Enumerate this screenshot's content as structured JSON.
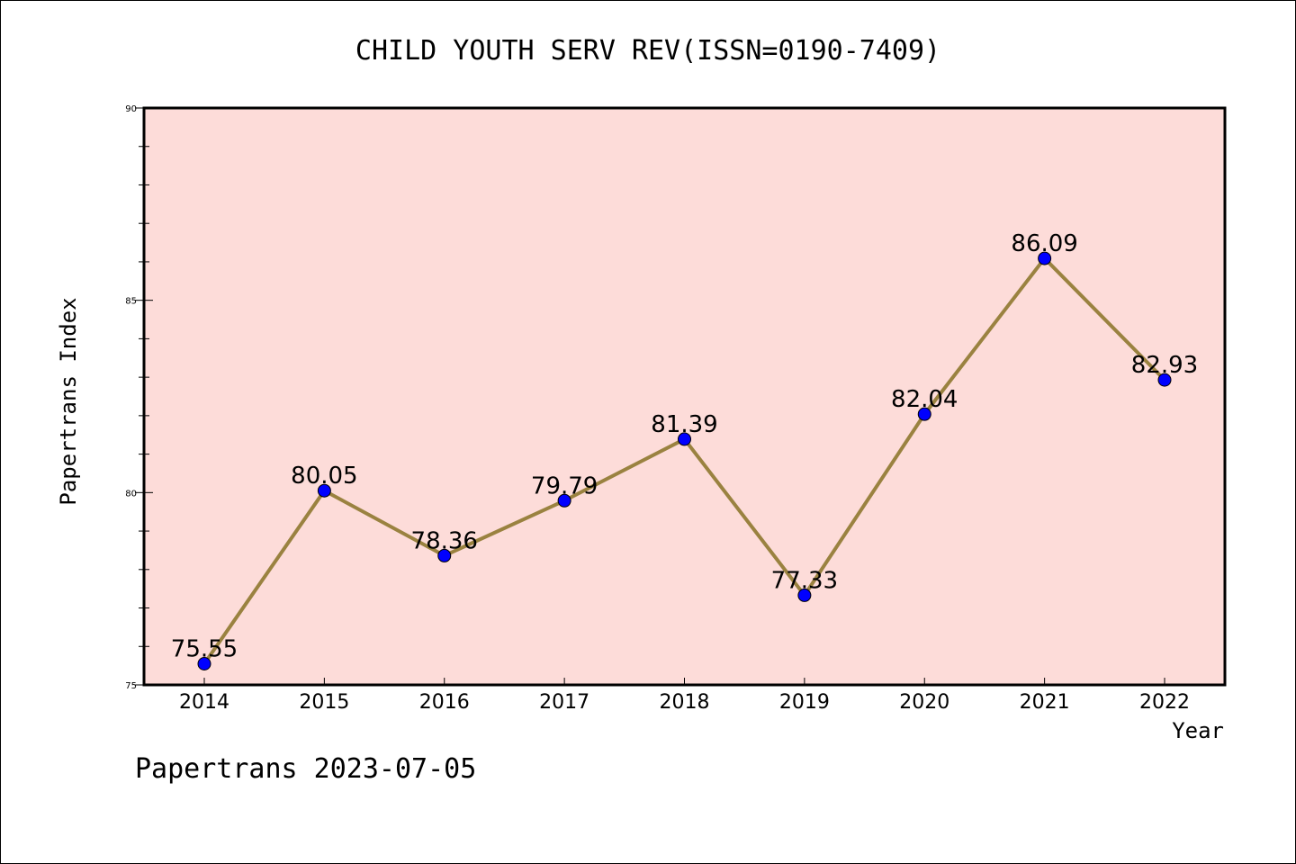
{
  "chart_data": {
    "type": "line",
    "title": "CHILD YOUTH SERV REV(ISSN=0190-7409)",
    "xlabel": "Year",
    "ylabel": "Papertrans Index",
    "footer": "Papertrans 2023-07-05",
    "categories": [
      "2014",
      "2015",
      "2016",
      "2017",
      "2018",
      "2019",
      "2020",
      "2021",
      "2022"
    ],
    "values": [
      75.55,
      80.05,
      78.36,
      79.79,
      81.39,
      77.33,
      82.04,
      86.09,
      82.93
    ],
    "data_labels": [
      "75.55",
      "80.05",
      "78.36",
      "79.79",
      "81.39",
      "77.33",
      "82.04",
      "86.09",
      "82.93"
    ],
    "ylim": [
      75,
      90
    ],
    "yticks": [
      "75",
      "80",
      "85",
      "90"
    ],
    "grid": false,
    "colors": {
      "plot_background": "#fddcd9",
      "line": "#9a8240",
      "marker": "#0000ff",
      "marker_edge": "#000000"
    }
  }
}
